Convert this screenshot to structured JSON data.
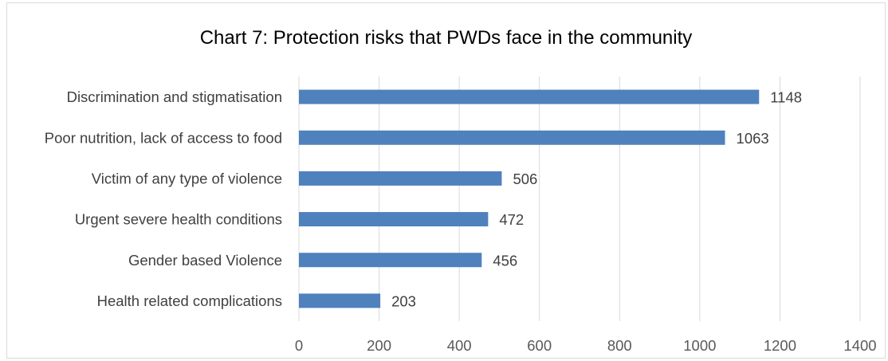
{
  "chart_data": {
    "type": "bar",
    "orientation": "horizontal",
    "title": "Chart 7:  Protection risks that PWDs face in the community",
    "categories": [
      "Discrimination and stigmatisation",
      "Poor nutrition, lack of access to food",
      "Victim of any type of violence",
      "Urgent severe health conditions",
      "Gender based Violence",
      "Health related complications"
    ],
    "values": [
      1148,
      1063,
      506,
      472,
      456,
      203
    ],
    "xlim": [
      0,
      1400
    ],
    "xticks": [
      "0",
      "200",
      "400",
      "600",
      "800",
      "1000",
      "1200",
      "1400"
    ],
    "grid": true,
    "bar_color": "#4f81bd",
    "grid_color": "#d9d9d9",
    "data_labels": true
  }
}
